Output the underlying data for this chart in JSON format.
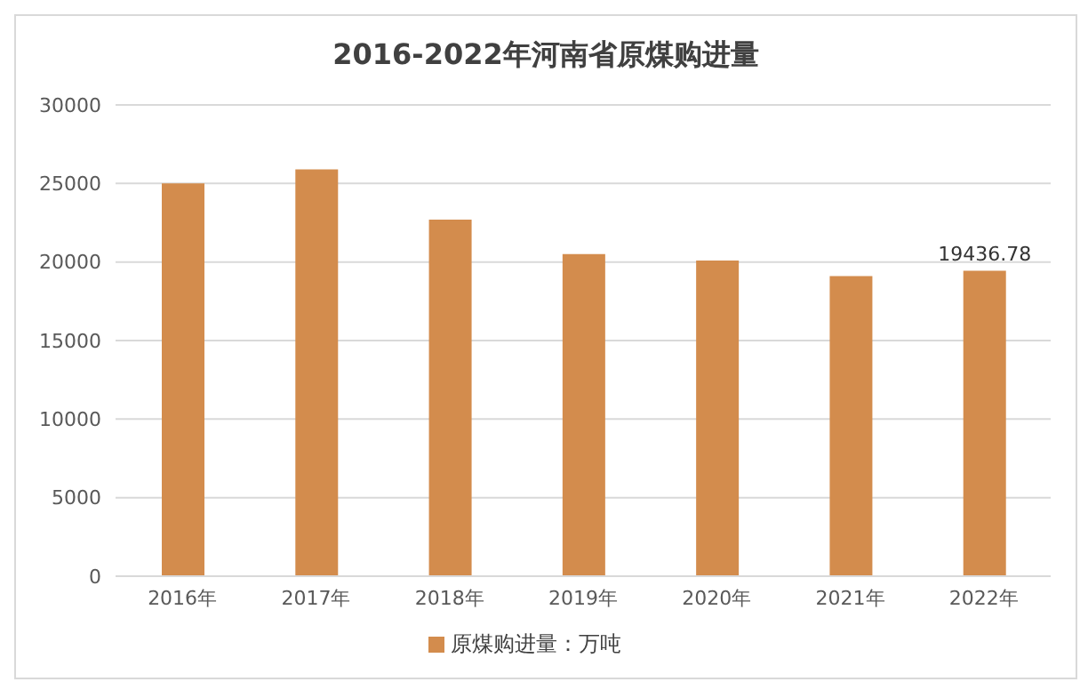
{
  "chart_data": {
    "type": "bar",
    "title": "2016-2022年河南省原煤购进量",
    "categories": [
      "2016年",
      "2017年",
      "2018年",
      "2019年",
      "2020年",
      "2021年",
      "2022年"
    ],
    "series": [
      {
        "name": "原煤购进量：万吨",
        "color": "#d38c4d",
        "values": [
          25000,
          25900,
          22700,
          20500,
          20100,
          19100,
          19436.78
        ],
        "value_labels": [
          null,
          null,
          null,
          null,
          null,
          null,
          "19436.78"
        ]
      }
    ],
    "ylim": [
      0,
      30000
    ],
    "yticks": [
      0,
      5000,
      10000,
      15000,
      20000,
      25000,
      30000
    ],
    "grid": "y",
    "legend": "bottom"
  }
}
